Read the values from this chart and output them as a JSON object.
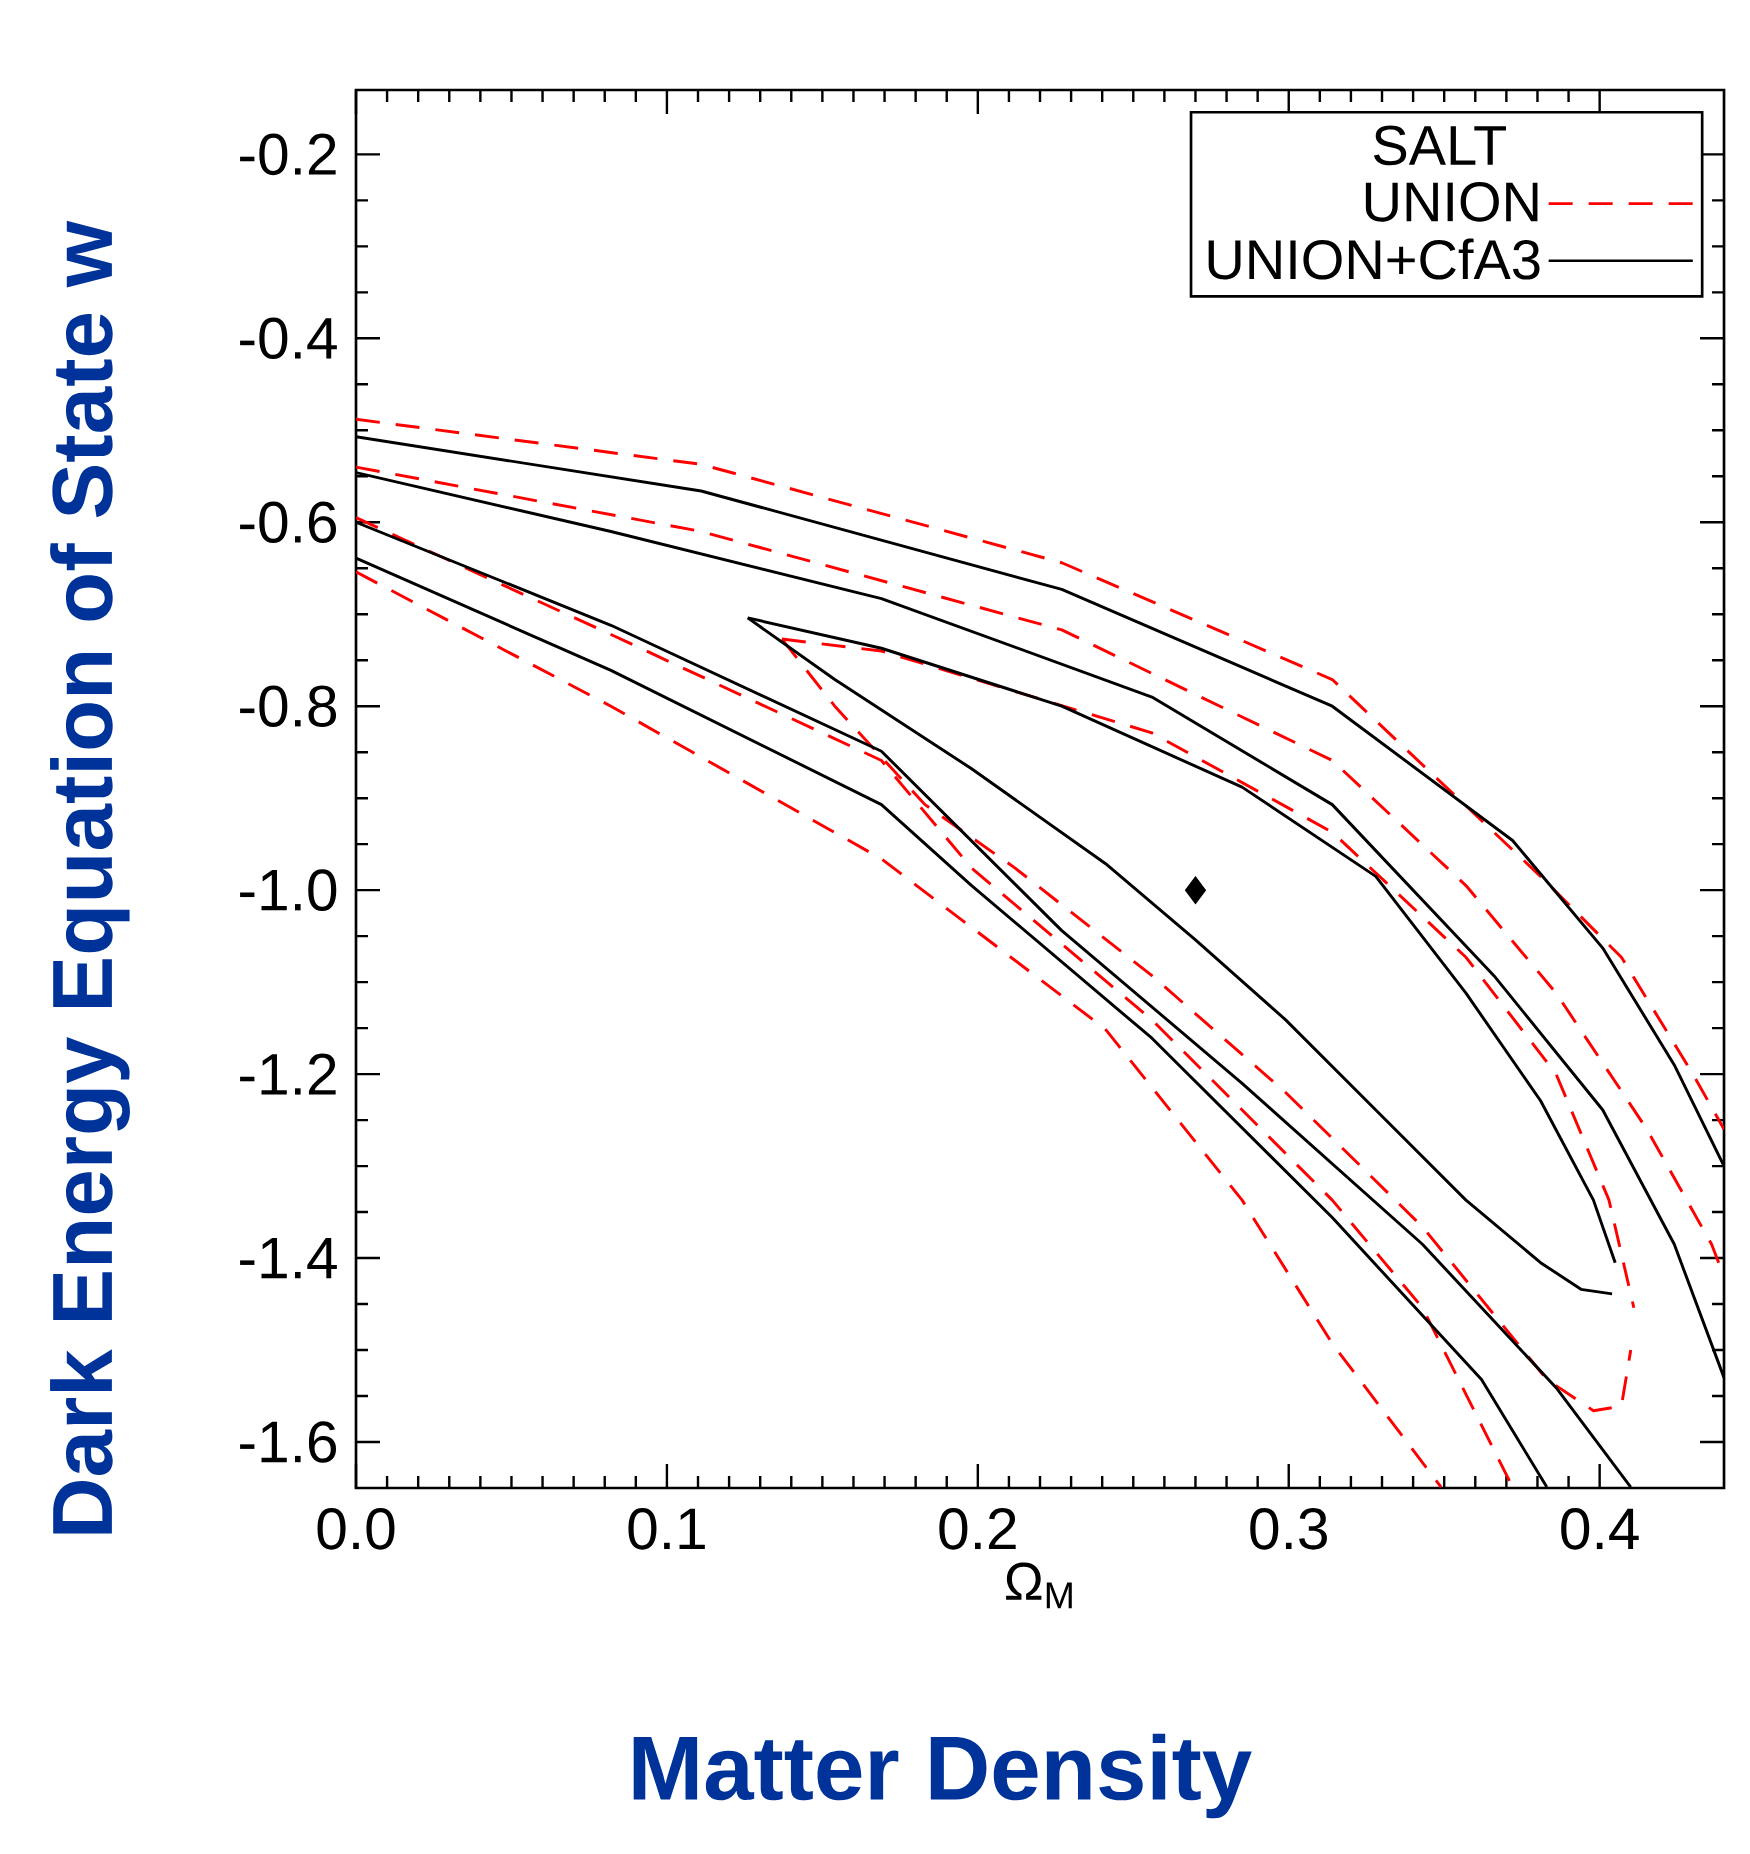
{
  "chart_data": {
    "type": "line",
    "ylabel": "Dark Energy Equation of State w",
    "xlabel": "Ω$_{M}$",
    "annotations": [
      "Matter Density"
    ],
    "legend_title": "SALT",
    "legend": "top right",
    "xlim": [
      0,
      0.44
    ],
    "ylim": [
      -1.65,
      -0.13
    ],
    "xticks": [
      {
        "value": 0,
        "label": "0.0"
      },
      {
        "value": 0.1,
        "label": "0.1"
      },
      {
        "value": 0.2,
        "label": "0.2"
      },
      {
        "value": 0.3,
        "label": "0.3"
      },
      {
        "value": 0.4,
        "label": "0.4"
      }
    ],
    "yticks": [
      {
        "value": -0.2,
        "label": "-0.2"
      },
      {
        "value": -0.4,
        "label": "-0.4"
      },
      {
        "value": -0.6,
        "label": "-0.6"
      },
      {
        "value": -0.8,
        "label": "-0.8"
      },
      {
        "value": -1.0,
        "label": "-1.0"
      },
      {
        "value": -1.2,
        "label": "-1.2"
      },
      {
        "value": -1.4,
        "label": "-1.4"
      },
      {
        "value": -1.6,
        "label": "-1.6"
      }
    ],
    "series": [
      {
        "name": "UNION",
        "color": "#ff0000",
        "line_style": "dashed",
        "x": [
          0.137,
          0.169,
          0.256,
          0.314,
          0.357,
          0.386,
          0.403,
          0.411
        ],
        "values": [
          -0.727,
          -0.74,
          -0.829,
          -0.937,
          -1.073,
          -1.2,
          -1.337,
          -1.454
        ]
      },
      {
        "color": "#ff0000",
        "line_style": "dashed",
        "x": [
          0.137,
          0.154,
          0.183,
          0.212,
          0.256,
          0.299,
          0.343,
          0.383,
          0.398,
          0.407,
          0.41
        ],
        "values": [
          -0.727,
          -0.8,
          -0.907,
          -0.976,
          -1.093,
          -1.22,
          -1.366,
          -1.532,
          -1.566,
          -1.561,
          -1.5
        ]
      },
      {
        "color": "#ff0000",
        "line_style": "dashed",
        "x": [
          0,
          0.111,
          0.227,
          0.314,
          0.357,
          0.386,
          0.415,
          0.436,
          0.44
        ],
        "values": [
          -0.54,
          -0.61,
          -0.717,
          -0.859,
          -0.995,
          -1.112,
          -1.259,
          -1.385,
          -1.42
        ]
      },
      {
        "color": "#ff0000",
        "line_style": "dashed",
        "x": [
          0,
          0.111,
          0.227,
          0.314,
          0.381,
          0.407,
          0.43,
          0.44
        ],
        "values": [
          -0.488,
          -0.537,
          -0.644,
          -0.771,
          -0.985,
          -1.073,
          -1.2,
          -1.26
        ]
      },
      {
        "color": "#ff0000",
        "line_style": "dashed",
        "x": [
          0,
          0.082,
          0.169,
          0.198,
          0.256,
          0.314,
          0.343,
          0.372
        ],
        "values": [
          -0.595,
          -0.722,
          -0.859,
          -0.976,
          -1.141,
          -1.337,
          -1.454,
          -1.649
        ]
      },
      {
        "color": "#ff0000",
        "line_style": "dashed",
        "x": [
          0,
          0.082,
          0.169,
          0.241,
          0.285,
          0.314,
          0.349
        ],
        "values": [
          -0.654,
          -0.8,
          -0.966,
          -1.151,
          -1.337,
          -1.493,
          -1.649
        ]
      },
      {
        "name": "UNION+CfA3",
        "color": "#000000",
        "line_style": "solid",
        "x": [
          0.126,
          0.169,
          0.227,
          0.285,
          0.328,
          0.357,
          0.381,
          0.398,
          0.405
        ],
        "values": [
          -0.704,
          -0.737,
          -0.8,
          -0.888,
          -0.985,
          -1.112,
          -1.229,
          -1.337,
          -1.405
        ]
      },
      {
        "color": "#000000",
        "line_style": "solid",
        "x": [
          0.126,
          0.154,
          0.198,
          0.241,
          0.27,
          0.299,
          0.328,
          0.357,
          0.381,
          0.394,
          0.404
        ],
        "values": [
          -0.704,
          -0.771,
          -0.868,
          -0.971,
          -1.054,
          -1.141,
          -1.239,
          -1.337,
          -1.405,
          -1.434,
          -1.439
        ]
      },
      {
        "color": "#000000",
        "line_style": "solid",
        "x": [
          0,
          0.082,
          0.169,
          0.256,
          0.314,
          0.366,
          0.401,
          0.424,
          0.44
        ],
        "values": [
          -0.546,
          -0.61,
          -0.683,
          -0.79,
          -0.907,
          -1.093,
          -1.239,
          -1.385,
          -1.53
        ]
      },
      {
        "color": "#000000",
        "line_style": "solid",
        "x": [
          0,
          0.111,
          0.227,
          0.314,
          0.372,
          0.401,
          0.424,
          0.44
        ],
        "values": [
          -0.507,
          -0.566,
          -0.673,
          -0.8,
          -0.946,
          -1.063,
          -1.19,
          -1.3
        ]
      },
      {
        "color": "#000000",
        "line_style": "solid",
        "x": [
          0,
          0.082,
          0.169,
          0.227,
          0.285,
          0.343,
          0.386,
          0.41
        ],
        "values": [
          -0.6,
          -0.712,
          -0.849,
          -1.044,
          -1.21,
          -1.385,
          -1.541,
          -1.649
        ]
      },
      {
        "color": "#000000",
        "line_style": "solid",
        "x": [
          0,
          0.082,
          0.169,
          0.198,
          0.256,
          0.314,
          0.362,
          0.383
        ],
        "values": [
          -0.639,
          -0.761,
          -0.907,
          -0.995,
          -1.161,
          -1.356,
          -1.532,
          -1.649
        ]
      },
      {
        "type": "scatter",
        "color": "#000000",
        "marker": "diamond",
        "x": [
          0.27
        ],
        "values": [
          -1.0
        ]
      }
    ]
  }
}
